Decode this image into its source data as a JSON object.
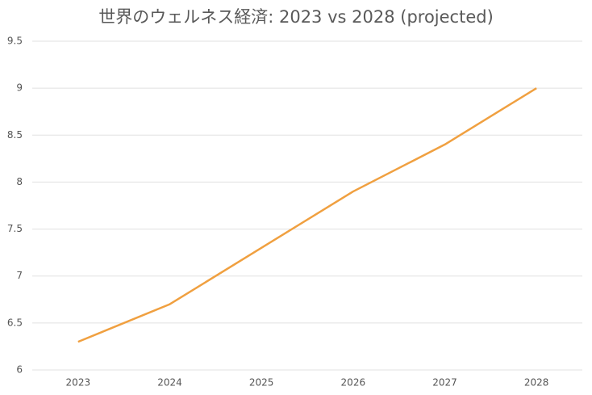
{
  "chart_data": {
    "type": "line",
    "title": "世界のウェルネス経済: 2023 vs 2028 (projected)",
    "categories": [
      "2023",
      "2024",
      "2025",
      "2026",
      "2027",
      "2028"
    ],
    "values": [
      6.3,
      6.7,
      7.3,
      7.9,
      8.4,
      9
    ],
    "color": "#f0a040",
    "ylim": [
      6,
      9.5
    ],
    "yticks": [
      6,
      6.5,
      7,
      7.5,
      8,
      8.5,
      9,
      9.5
    ],
    "grid": true
  }
}
